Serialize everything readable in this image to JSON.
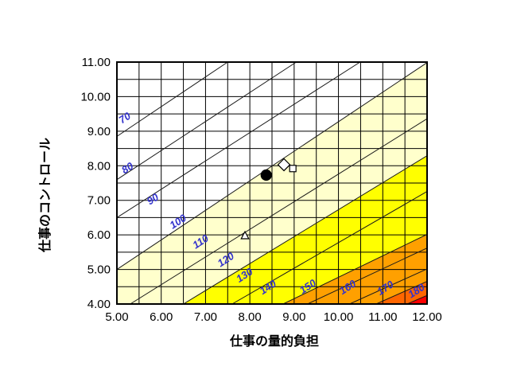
{
  "page": {
    "background": "#FFFFFF"
  },
  "chart_data": {
    "type": "heatmap",
    "subtype": "contour-bands",
    "title": "",
    "xlabel": "仕事の量的負担",
    "ylabel": "仕事のコントロール",
    "xlim": [
      5,
      12
    ],
    "ylim": [
      4,
      11
    ],
    "grid_step": 0.5,
    "grid_on": true,
    "x_ticks": [
      "5.00",
      "6.00",
      "7.00",
      "8.00",
      "9.00",
      "10.00",
      "11.00",
      "12.00"
    ],
    "y_ticks": [
      "4.00",
      "5.00",
      "6.00",
      "7.00",
      "8.00",
      "9.00",
      "10.00",
      "11.00"
    ],
    "contour_levels": [
      70,
      80,
      90,
      100,
      110,
      120,
      130,
      140,
      150,
      160,
      170,
      180
    ],
    "contours": [
      {
        "value": 70,
        "label": "70",
        "anchor": [
          5.0,
          8.85
        ],
        "slope": 0.86,
        "label_pos": [
          5.22,
          9.3
        ]
      },
      {
        "value": 80,
        "label": "80",
        "anchor": [
          5.0,
          7.6
        ],
        "slope": 0.84,
        "label_pos": [
          5.28,
          7.85
        ]
      },
      {
        "value": 90,
        "label": "90",
        "anchor": [
          5.0,
          6.5
        ],
        "slope": 0.82,
        "label_pos": [
          5.85,
          6.95
        ]
      },
      {
        "value": 100,
        "label": "100",
        "anchor": [
          5.0,
          5.0
        ],
        "slope": 0.855,
        "label_pos": [
          6.42,
          6.3
        ]
      },
      {
        "value": 110,
        "label": "110",
        "anchor": [
          5.3,
          4.0
        ],
        "slope": 0.8,
        "label_pos": [
          6.93,
          5.72
        ]
      },
      {
        "value": 120,
        "label": "120",
        "anchor": [
          6.5,
          4.0
        ],
        "slope": 0.78,
        "label_pos": [
          7.5,
          5.2
        ]
      },
      {
        "value": 130,
        "label": "130",
        "anchor": [
          7.6,
          4.0
        ],
        "slope": 0.74,
        "label_pos": [
          7.92,
          4.75
        ]
      },
      {
        "value": 140,
        "label": "140",
        "anchor": [
          8.75,
          4.0
        ],
        "slope": 0.62,
        "label_pos": [
          8.45,
          4.4
        ]
      },
      {
        "value": 150,
        "label": "150",
        "anchor": [
          9.3,
          4.0
        ],
        "slope": 0.6,
        "label_pos": [
          9.35,
          4.42
        ]
      },
      {
        "value": 160,
        "label": "160",
        "anchor": [
          10.25,
          4.0
        ],
        "slope": 0.58,
        "label_pos": [
          10.25,
          4.4
        ]
      },
      {
        "value": 170,
        "label": "170",
        "anchor": [
          10.85,
          4.0
        ],
        "slope": 0.57,
        "label_pos": [
          11.1,
          4.38
        ]
      },
      {
        "value": 180,
        "label": "180",
        "anchor": [
          11.55,
          4.0
        ],
        "slope": 0.55,
        "label_pos": [
          11.8,
          4.3
        ]
      }
    ],
    "bands": [
      {
        "below_level": 100,
        "color": "#FFFFCC"
      },
      {
        "below_level": 120,
        "color": "#FFFF00"
      },
      {
        "below_level": 140,
        "color": "#FFA000"
      },
      {
        "below_level": 170,
        "color": "#FF6600"
      },
      {
        "below_level": 180,
        "color": "#FF0000"
      }
    ],
    "base_band_color": "#FFFFFF",
    "markers": [
      {
        "shape": "circle",
        "x": 8.37,
        "y": 7.73,
        "fill": "#000000",
        "stroke": "#000000",
        "size": 13
      },
      {
        "shape": "diamond",
        "x": 8.77,
        "y": 8.03,
        "fill": "#FFFFFF",
        "stroke": "#000000",
        "size": 15
      },
      {
        "shape": "square",
        "x": 8.97,
        "y": 7.92,
        "fill": "#FFFFFF",
        "stroke": "#000000",
        "size": 8
      },
      {
        "shape": "triangle",
        "x": 7.89,
        "y": 5.98,
        "fill": "#FFFFFF",
        "stroke": "#000000",
        "size": 10
      }
    ],
    "colors": {
      "grid": "#000000",
      "border": "#000000",
      "contour_line": "#1a1a1a",
      "contour_label": "#3333CC",
      "tick_label": "#000000"
    },
    "legend": {
      "visible": false
    }
  }
}
